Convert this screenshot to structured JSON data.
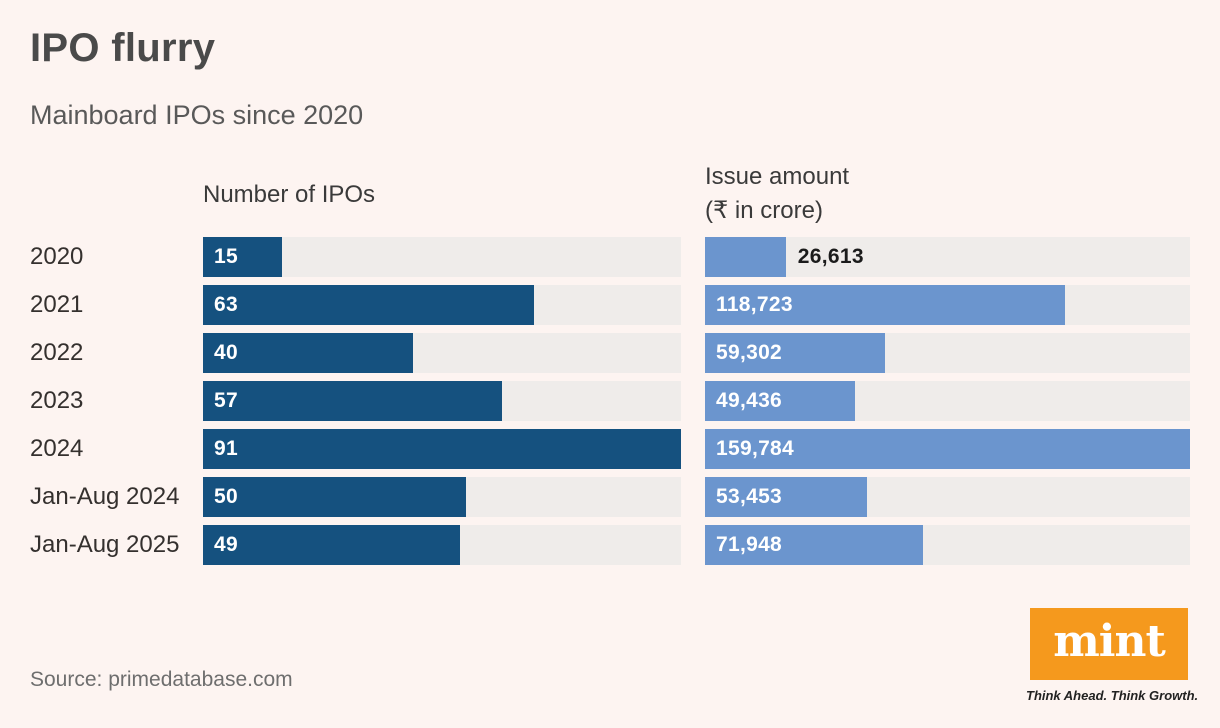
{
  "header": {
    "title": "IPO flurry",
    "subtitle": "Mainboard IPOs since 2020"
  },
  "columns": {
    "ipos_header": "Number of IPOs",
    "issue_header": "Issue amount\n(₹ in crore)"
  },
  "chart_data": {
    "type": "bar",
    "orientation": "horizontal",
    "grid": false,
    "legend_position": "none",
    "categories": [
      "2020",
      "2021",
      "2022",
      "2023",
      "2024",
      "Jan-Aug 2024",
      "Jan-Aug 2025"
    ],
    "series": [
      {
        "name": "Number of IPOs",
        "values": [
          15,
          63,
          40,
          57,
          91,
          50,
          49
        ],
        "value_labels": [
          "15",
          "63",
          "40",
          "57",
          "91",
          "50",
          "49"
        ],
        "max": 91,
        "bar_color": "#15517f"
      },
      {
        "name": "Issue amount (₹ in crore)",
        "values": [
          26613,
          118723,
          59302,
          49436,
          159784,
          53453,
          71948
        ],
        "value_labels": [
          "26,613",
          "118,723",
          "59,302",
          "49,436",
          "159,784",
          "53,453",
          "71,948"
        ],
        "max": 159784,
        "bar_color": "#6b95ce"
      }
    ]
  },
  "footer": {
    "source": "Source: primedatabase.com",
    "logo_text": "mint",
    "tagline": "Think Ahead. Think Growth.",
    "logo_color": "#f5991d"
  },
  "colors": {
    "background": "#fdf4f1",
    "track": "#efecea",
    "bar_dark_blue": "#15517f",
    "bar_light_blue": "#6b95ce",
    "value_inside_text": "#ffffff",
    "value_outside_text": "#1b1b1b"
  }
}
